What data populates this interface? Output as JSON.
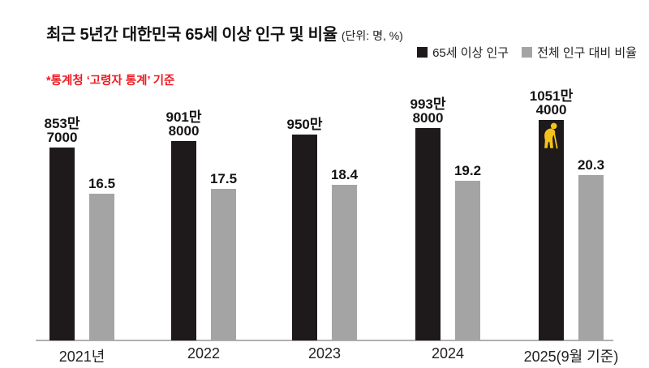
{
  "title": {
    "main": "최근 5년간 대한민국 65세 이상 인구 및 비율",
    "unit": "(단위: 명, %)"
  },
  "source_note": "*통계청 ‘고령자 통계’ 기준",
  "legend": {
    "position": "top-right",
    "items": [
      {
        "label": "65세 이상 인구",
        "color": "#1e1a1b"
      },
      {
        "label": "전체 인구 대비 비율",
        "color": "#a5a4a4"
      }
    ]
  },
  "colors": {
    "black_bar": "#1e1a1b",
    "gray_bar": "#a5a4a4",
    "accent_red": "#ed1c24",
    "icon_yellow": "#f3c31b",
    "axis_line": "#b1afaf",
    "text": "#161314"
  },
  "icon": {
    "name": "elderly-person-with-cane",
    "color": "#f3c31b"
  },
  "chart_data": {
    "type": "bar",
    "title": "최근 5년간 대한민국 65세 이상 인구 및 비율",
    "unit": "명, %",
    "categories": [
      "2021년",
      "2022",
      "2023",
      "2024",
      "2025(9월 기준)"
    ],
    "series": [
      {
        "name": "65세 이상 인구",
        "color": "#1e1a1b",
        "values": [
          8537000,
          9018000,
          9500000,
          9938000,
          10514000
        ],
        "value_labels": [
          [
            "853만",
            "7000"
          ],
          [
            "901만",
            "8000"
          ],
          [
            "950만"
          ],
          [
            "993만",
            "8000"
          ],
          [
            "1051만",
            "4000"
          ]
        ]
      },
      {
        "name": "전체 인구 대비 비율",
        "color": "#a5a4a4",
        "values": [
          16.5,
          17.5,
          18.4,
          19.2,
          20.3
        ],
        "value_labels": [
          [
            "16.5"
          ],
          [
            "17.5"
          ],
          [
            "18.4"
          ],
          [
            "19.2"
          ],
          [
            "20.3"
          ]
        ]
      }
    ],
    "grid": false,
    "legend_position": "top-right",
    "baseline": "non-zero stylized baseline"
  }
}
